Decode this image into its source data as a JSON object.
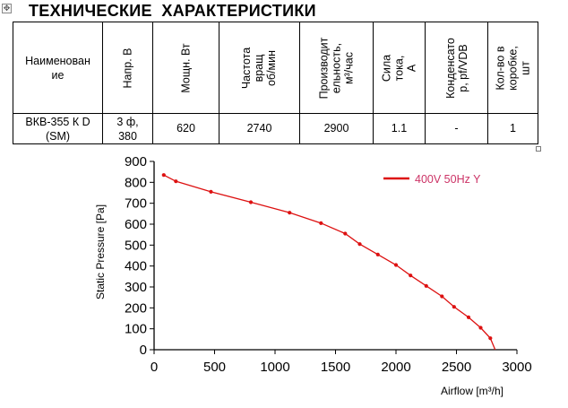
{
  "title": "ТЕХНИЧЕСКИЕ  ХАРАКТЕРИСТИКИ",
  "table": {
    "headers": [
      "Наименован\nие",
      "Напр. В",
      "Мощн. Вт",
      "Частота\nвращ\nоб/мин",
      "Производит\nельность,\nм³/час",
      "Сила тока,\nА",
      "Конденсато\nр, pf/VDB",
      "Кол-во в\nкоробке, шт"
    ],
    "row": [
      "ВКВ-355 К D\n(SM)",
      "3 ф,\n380",
      "620",
      "2740",
      "2900",
      "1.1",
      "-",
      "1"
    ]
  },
  "chart_data": {
    "type": "line",
    "xlabel": "Airflow [m³/h]",
    "ylabel": "Static Pressure [Pa]",
    "xlim": [
      0,
      3000
    ],
    "ylim": [
      0,
      900
    ],
    "xticks": [
      0,
      500,
      1000,
      1500,
      2000,
      2500,
      3000
    ],
    "yticks": [
      0,
      100,
      200,
      300,
      400,
      500,
      600,
      700,
      800,
      900
    ],
    "grid": false,
    "legend_position": "top-right",
    "series": [
      {
        "name": "400V 50Hz Y",
        "color": "#dd1111",
        "x": [
          80,
          180,
          470,
          800,
          1120,
          1380,
          1580,
          1700,
          1850,
          2000,
          2120,
          2250,
          2380,
          2480,
          2600,
          2700,
          2780
        ],
        "y": [
          835,
          805,
          755,
          705,
          655,
          605,
          555,
          505,
          455,
          405,
          355,
          305,
          255,
          205,
          155,
          105,
          55
        ],
        "line_end": [
          2820,
          0
        ]
      }
    ]
  },
  "colors": {
    "series": "#dd1111",
    "legend_text": "#cc3366"
  }
}
